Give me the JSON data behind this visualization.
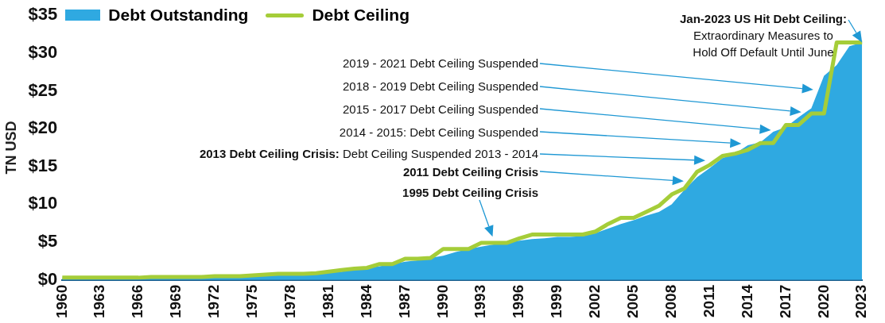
{
  "chart_data": {
    "type": "area",
    "ylabel": "TN USD",
    "legend": "top left",
    "grid": false,
    "marker": "none",
    "x": [
      1960,
      1961,
      1962,
      1963,
      1964,
      1965,
      1966,
      1967,
      1968,
      1969,
      1970,
      1971,
      1972,
      1973,
      1974,
      1975,
      1976,
      1977,
      1978,
      1979,
      1980,
      1981,
      1982,
      1983,
      1984,
      1985,
      1986,
      1987,
      1988,
      1989,
      1990,
      1991,
      1992,
      1993,
      1994,
      1995,
      1996,
      1997,
      1998,
      1999,
      2000,
      2001,
      2002,
      2003,
      2004,
      2005,
      2006,
      2007,
      2008,
      2009,
      2010,
      2011,
      2012,
      2013,
      2014,
      2015,
      2016,
      2017,
      2018,
      2019,
      2020,
      2021,
      2022,
      2023
    ],
    "series": [
      {
        "name": "Debt Outstanding",
        "color": "#2fa9e1",
        "values": [
          0.3,
          0.3,
          0.3,
          0.3,
          0.3,
          0.3,
          0.3,
          0.3,
          0.4,
          0.4,
          0.4,
          0.4,
          0.4,
          0.5,
          0.5,
          0.5,
          0.6,
          0.7,
          0.8,
          0.8,
          0.9,
          1.0,
          1.1,
          1.4,
          1.6,
          1.8,
          2.1,
          2.4,
          2.6,
          2.9,
          3.2,
          3.7,
          4.1,
          4.4,
          4.7,
          5.0,
          5.2,
          5.4,
          5.5,
          5.7,
          5.7,
          5.8,
          6.2,
          6.8,
          7.4,
          7.9,
          8.5,
          9.0,
          10.0,
          11.9,
          13.6,
          14.8,
          16.1,
          16.7,
          17.8,
          18.2,
          19.6,
          20.2,
          21.5,
          22.7,
          27.0,
          28.4,
          30.9,
          31.4
        ]
      },
      {
        "name": "Debt Ceiling",
        "type": "line",
        "color": "#a5cd39",
        "line_style": "solid",
        "values": [
          0.3,
          0.3,
          0.3,
          0.3,
          0.3,
          0.3,
          0.3,
          0.4,
          0.4,
          0.4,
          0.4,
          0.4,
          0.5,
          0.5,
          0.5,
          0.6,
          0.7,
          0.8,
          0.8,
          0.8,
          0.9,
          1.1,
          1.3,
          1.5,
          1.6,
          2.1,
          2.1,
          2.8,
          2.8,
          2.9,
          4.1,
          4.1,
          4.1,
          4.9,
          4.9,
          4.9,
          5.5,
          6.0,
          6.0,
          6.0,
          6.0,
          6.0,
          6.4,
          7.4,
          8.2,
          8.2,
          9.0,
          9.8,
          11.3,
          12.1,
          14.3,
          15.2,
          16.4,
          16.7,
          17.2,
          18.1,
          18.1,
          20.5,
          20.5,
          22.0,
          22.0,
          31.4,
          31.4,
          31.4
        ]
      }
    ],
    "xlim": [
      1960,
      2023
    ],
    "xticks": [
      1960,
      1963,
      1966,
      1969,
      1972,
      1975,
      1978,
      1981,
      1984,
      1987,
      1990,
      1993,
      1996,
      1999,
      2002,
      2005,
      2008,
      2011,
      2014,
      2017,
      2020,
      2023
    ],
    "ylim": [
      0,
      35
    ],
    "yticks": [
      {
        "value": 0,
        "label": "$0"
      },
      {
        "value": 5,
        "label": "$5"
      },
      {
        "value": 10,
        "label": "$10"
      },
      {
        "value": 15,
        "label": "$15"
      },
      {
        "value": 20,
        "label": "$20"
      },
      {
        "value": 25,
        "label": "$25"
      },
      {
        "value": 30,
        "label": "$30"
      },
      {
        "value": 35,
        "label": "$35"
      }
    ],
    "annotations": [
      {
        "text": "Jan-2023 US Hit Debt Ceiling: Extraordinary Measures to Hold Off Default Until June",
        "x": 2023,
        "y": 31.4
      },
      "2019 - 2021 Debt Ceiling Suspended",
      "2018 - 2019 Debt Ceiling Suspended",
      "2015 - 2017 Debt Ceiling Suspended",
      "2014 - 2015: Debt Ceiling Suspended",
      "2013 Debt Ceiling Crisis: Debt Ceiling Suspended 2013 - 2014",
      "2011 Debt Ceiling Crisis",
      "1995 Debt Ceiling Crisis"
    ]
  }
}
